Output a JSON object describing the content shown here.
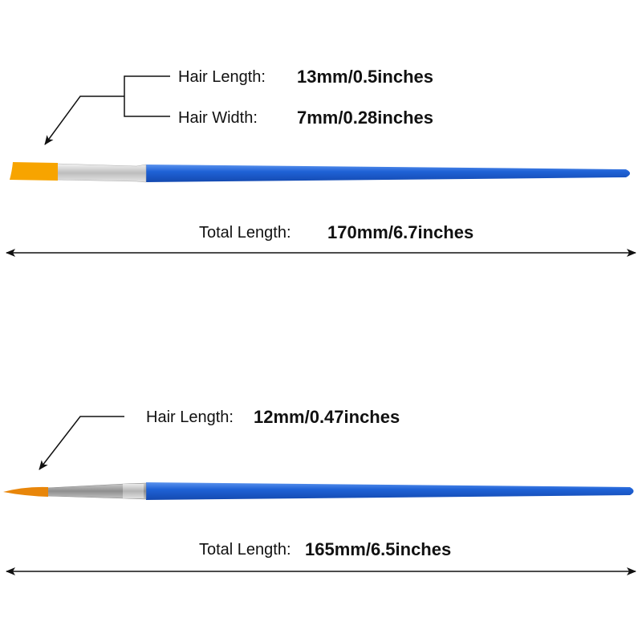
{
  "flat_brush": {
    "hair_length_label": "Hair Length:",
    "hair_length_value": "13mm/0.5inches",
    "hair_width_label": "Hair Width:",
    "hair_width_value": "7mm/0.28inches",
    "total_length_label": "Total Length:",
    "total_length_value": "170mm/6.7inches",
    "hair_color": "#f7a400",
    "handle_color": "#1f62d6"
  },
  "round_brush": {
    "hair_length_label": "Hair Length:",
    "hair_length_value": "12mm/0.47inches",
    "total_length_label": "Total Length:",
    "total_length_value": "165mm/6.5inches",
    "hair_color": "#e8860a",
    "handle_color": "#1f62d6"
  }
}
